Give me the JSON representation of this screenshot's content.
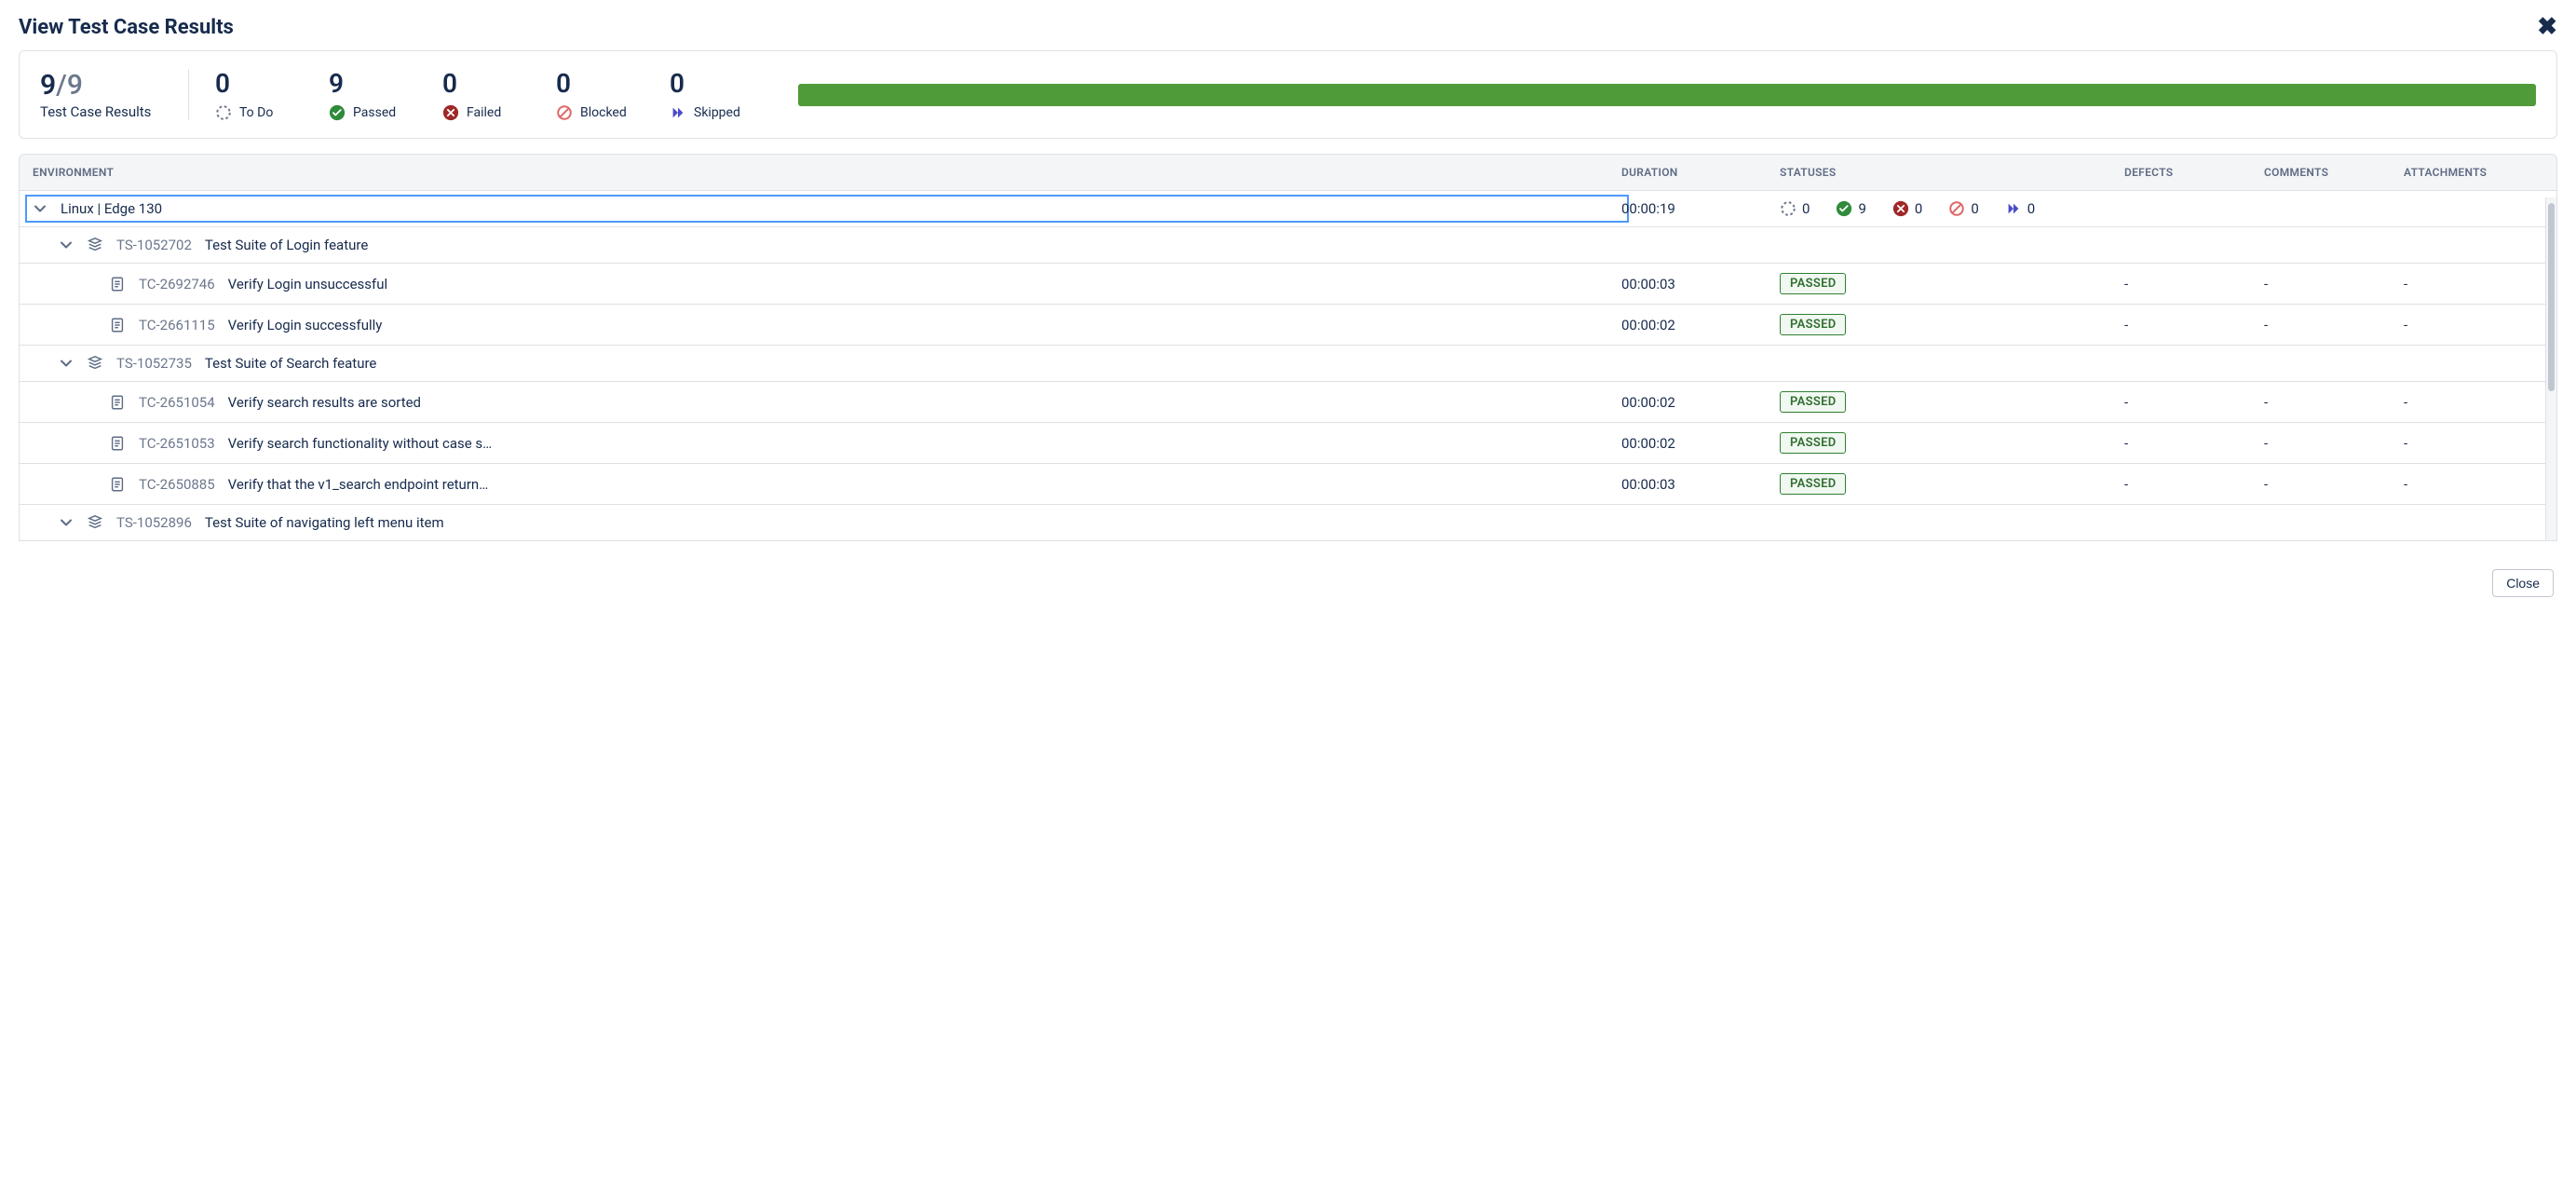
{
  "header": {
    "title": "View Test Case Results"
  },
  "summary": {
    "done": "9",
    "of": "/9",
    "label": "Test Case Results",
    "items": [
      {
        "count": "0",
        "label": "To Do",
        "icon": "todo"
      },
      {
        "count": "9",
        "label": "Passed",
        "icon": "passed"
      },
      {
        "count": "0",
        "label": "Failed",
        "icon": "failed"
      },
      {
        "count": "0",
        "label": "Blocked",
        "icon": "blocked"
      },
      {
        "count": "0",
        "label": "Skipped",
        "icon": "skipped"
      }
    ],
    "progress_pct": 100,
    "progress_color": "#4f9b3a"
  },
  "columns": {
    "env": "ENVIRONMENT",
    "duration": "DURATION",
    "statuses": "STATUSES",
    "defects": "DEFECTS",
    "comments": "COMMENTS",
    "attachments": "ATTACHMENTS"
  },
  "env": {
    "name": "Linux | Edge 130",
    "duration": "00:00:19",
    "stats": [
      {
        "icon": "todo",
        "value": "0"
      },
      {
        "icon": "passed",
        "value": "9"
      },
      {
        "icon": "failed",
        "value": "0"
      },
      {
        "icon": "blocked",
        "value": "0"
      },
      {
        "icon": "skipped",
        "value": "0"
      }
    ]
  },
  "suites": [
    {
      "id": "TS-1052702",
      "title": "Test Suite of Login feature",
      "cases": [
        {
          "id": "TC-2692746",
          "title": "Verify Login unsuccessful",
          "duration": "00:00:03",
          "status": "PASSED",
          "defects": "-",
          "comments": "-",
          "attachments": "-"
        },
        {
          "id": "TC-2661115",
          "title": "Verify Login successfully",
          "duration": "00:00:02",
          "status": "PASSED",
          "defects": "-",
          "comments": "-",
          "attachments": "-"
        }
      ]
    },
    {
      "id": "TS-1052735",
      "title": "Test Suite of Search feature",
      "cases": [
        {
          "id": "TC-2651054",
          "title": "Verify search results are sorted",
          "duration": "00:00:02",
          "status": "PASSED",
          "defects": "-",
          "comments": "-",
          "attachments": "-"
        },
        {
          "id": "TC-2651053",
          "title": "Verify search functionality without case s…",
          "duration": "00:00:02",
          "status": "PASSED",
          "defects": "-",
          "comments": "-",
          "attachments": "-"
        },
        {
          "id": "TC-2650885",
          "title": "Verify that the v1_search endpoint return…",
          "duration": "00:00:03",
          "status": "PASSED",
          "defects": "-",
          "comments": "-",
          "attachments": "-"
        }
      ]
    },
    {
      "id": "TS-1052896",
      "title": "Test Suite of navigating left menu item",
      "cases": []
    }
  ],
  "footer": {
    "close": "Close"
  },
  "colors": {
    "passed": "#2f8b3a",
    "failed": "#a02828",
    "blocked": "#e06666",
    "skipped": "#4c4cc7",
    "todo": "#6b778c"
  }
}
